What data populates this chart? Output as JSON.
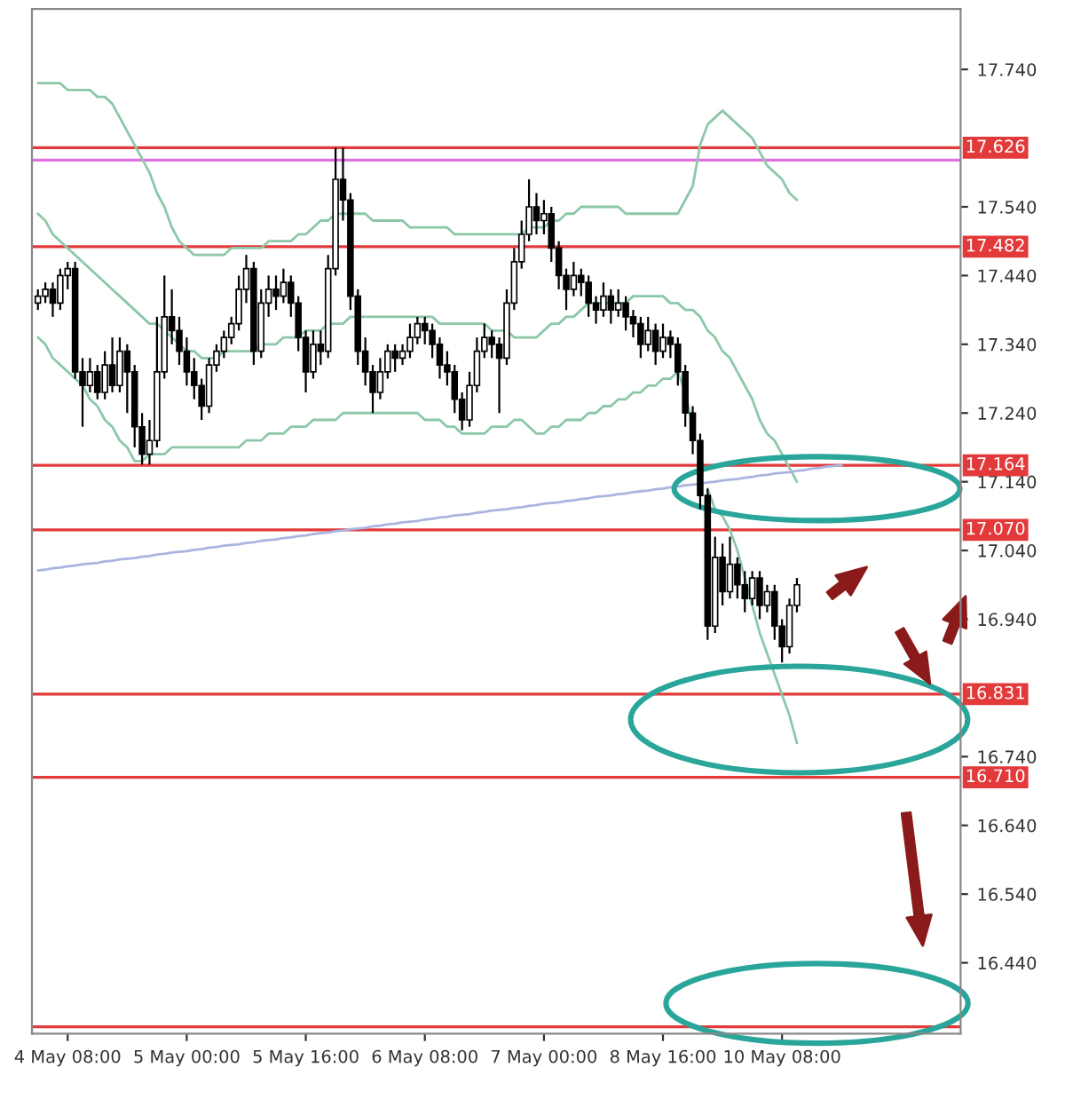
{
  "chart_data": {
    "type": "candlestick",
    "categories": [
      null,
      null,
      null,
      null,
      "4 May 08:00",
      null,
      null,
      null,
      null,
      null,
      null,
      null,
      null,
      null,
      null,
      null,
      null,
      null,
      null,
      null,
      "5 May 00:00",
      null,
      null,
      null,
      null,
      null,
      null,
      null,
      null,
      null,
      null,
      null,
      null,
      null,
      null,
      null,
      "5 May 16:00",
      null,
      null,
      null,
      null,
      null,
      null,
      null,
      null,
      null,
      null,
      null,
      null,
      null,
      null,
      null,
      "6 May 08:00",
      null,
      null,
      null,
      null,
      null,
      null,
      null,
      null,
      null,
      null,
      null,
      null,
      null,
      null,
      null,
      "7 May 00:00",
      null,
      null,
      null,
      null,
      null,
      null,
      null,
      null,
      null,
      null,
      null,
      null,
      null,
      null,
      null,
      "8 May 16:00",
      null,
      null,
      null,
      null,
      null,
      null,
      null,
      null,
      null,
      null,
      null,
      null,
      null,
      null,
      null,
      "10 May 08:00",
      null,
      null,
      null,
      null,
      null,
      null,
      null,
      null,
      null,
      null,
      null,
      null,
      null,
      null,
      null,
      null,
      null,
      null,
      null,
      null,
      null,
      null,
      null
    ],
    "ohlc": [
      [
        17.4,
        17.42,
        17.39,
        17.41
      ],
      [
        17.41,
        17.43,
        17.4,
        17.42
      ],
      [
        17.42,
        17.43,
        17.38,
        17.4
      ],
      [
        17.4,
        17.45,
        17.39,
        17.44
      ],
      [
        17.44,
        17.46,
        17.42,
        17.45
      ],
      [
        17.45,
        17.46,
        17.29,
        17.3
      ],
      [
        17.3,
        17.32,
        17.22,
        17.28
      ],
      [
        17.28,
        17.32,
        17.27,
        17.3
      ],
      [
        17.3,
        17.31,
        17.26,
        17.27
      ],
      [
        17.27,
        17.33,
        17.26,
        17.31
      ],
      [
        17.31,
        17.35,
        17.27,
        17.28
      ],
      [
        17.28,
        17.35,
        17.27,
        17.33
      ],
      [
        17.33,
        17.34,
        17.24,
        17.3
      ],
      [
        17.3,
        17.31,
        17.19,
        17.22
      ],
      [
        17.22,
        17.24,
        17.165,
        17.18
      ],
      [
        17.18,
        17.23,
        17.165,
        17.2
      ],
      [
        17.2,
        17.38,
        17.19,
        17.3
      ],
      [
        17.3,
        17.44,
        17.29,
        17.38
      ],
      [
        17.38,
        17.42,
        17.34,
        17.36
      ],
      [
        17.36,
        17.38,
        17.31,
        17.33
      ],
      [
        17.33,
        17.35,
        17.28,
        17.3
      ],
      [
        17.3,
        17.32,
        17.26,
        17.28
      ],
      [
        17.28,
        17.29,
        17.23,
        17.25
      ],
      [
        17.25,
        17.32,
        17.24,
        17.31
      ],
      [
        17.31,
        17.34,
        17.3,
        17.33
      ],
      [
        17.33,
        17.36,
        17.32,
        17.35
      ],
      [
        17.35,
        17.38,
        17.34,
        17.37
      ],
      [
        17.37,
        17.44,
        17.36,
        17.42
      ],
      [
        17.42,
        17.47,
        17.4,
        17.45
      ],
      [
        17.45,
        17.46,
        17.31,
        17.33
      ],
      [
        17.33,
        17.42,
        17.32,
        17.4
      ],
      [
        17.4,
        17.44,
        17.38,
        17.42
      ],
      [
        17.42,
        17.44,
        17.39,
        17.41
      ],
      [
        17.41,
        17.45,
        17.4,
        17.43
      ],
      [
        17.43,
        17.44,
        17.38,
        17.4
      ],
      [
        17.4,
        17.41,
        17.33,
        17.35
      ],
      [
        17.35,
        17.36,
        17.27,
        17.3
      ],
      [
        17.3,
        17.36,
        17.29,
        17.34
      ],
      [
        17.34,
        17.36,
        17.31,
        17.33
      ],
      [
        17.33,
        17.47,
        17.32,
        17.45
      ],
      [
        17.45,
        17.626,
        17.44,
        17.58
      ],
      [
        17.58,
        17.626,
        17.52,
        17.55
      ],
      [
        17.55,
        17.56,
        17.39,
        17.41
      ],
      [
        17.41,
        17.42,
        17.31,
        17.33
      ],
      [
        17.33,
        17.35,
        17.28,
        17.3
      ],
      [
        17.3,
        17.31,
        17.24,
        17.27
      ],
      [
        17.27,
        17.32,
        17.26,
        17.3
      ],
      [
        17.3,
        17.34,
        17.29,
        17.33
      ],
      [
        17.33,
        17.34,
        17.3,
        17.32
      ],
      [
        17.32,
        17.34,
        17.31,
        17.33
      ],
      [
        17.33,
        17.37,
        17.32,
        17.35
      ],
      [
        17.35,
        17.38,
        17.34,
        17.37
      ],
      [
        17.37,
        17.38,
        17.34,
        17.36
      ],
      [
        17.36,
        17.37,
        17.32,
        17.34
      ],
      [
        17.34,
        17.35,
        17.29,
        17.31
      ],
      [
        17.31,
        17.33,
        17.28,
        17.3
      ],
      [
        17.3,
        17.31,
        17.24,
        17.26
      ],
      [
        17.26,
        17.27,
        17.215,
        17.23
      ],
      [
        17.23,
        17.3,
        17.22,
        17.28
      ],
      [
        17.28,
        17.35,
        17.27,
        17.33
      ],
      [
        17.33,
        17.37,
        17.32,
        17.35
      ],
      [
        17.35,
        17.36,
        17.32,
        17.34
      ],
      [
        17.34,
        17.35,
        17.24,
        17.32
      ],
      [
        17.32,
        17.42,
        17.31,
        17.4
      ],
      [
        17.4,
        17.48,
        17.39,
        17.46
      ],
      [
        17.46,
        17.52,
        17.45,
        17.5
      ],
      [
        17.5,
        17.58,
        17.49,
        17.54
      ],
      [
        17.54,
        17.56,
        17.5,
        17.52
      ],
      [
        17.52,
        17.55,
        17.5,
        17.53
      ],
      [
        17.53,
        17.54,
        17.46,
        17.48
      ],
      [
        17.48,
        17.49,
        17.42,
        17.44
      ],
      [
        17.44,
        17.45,
        17.39,
        17.42
      ],
      [
        17.42,
        17.46,
        17.41,
        17.44
      ],
      [
        17.44,
        17.45,
        17.41,
        17.43
      ],
      [
        17.43,
        17.44,
        17.38,
        17.4
      ],
      [
        17.4,
        17.41,
        17.37,
        17.39
      ],
      [
        17.39,
        17.43,
        17.38,
        17.41
      ],
      [
        17.41,
        17.42,
        17.37,
        17.39
      ],
      [
        17.39,
        17.42,
        17.38,
        17.4
      ],
      [
        17.4,
        17.41,
        17.36,
        17.38
      ],
      [
        17.38,
        17.39,
        17.35,
        17.37
      ],
      [
        17.37,
        17.38,
        17.32,
        17.34
      ],
      [
        17.34,
        17.38,
        17.33,
        17.36
      ],
      [
        17.36,
        17.37,
        17.31,
        17.33
      ],
      [
        17.33,
        17.37,
        17.32,
        17.35
      ],
      [
        17.35,
        17.36,
        17.32,
        17.34
      ],
      [
        17.34,
        17.35,
        17.28,
        17.3
      ],
      [
        17.3,
        17.31,
        17.22,
        17.24
      ],
      [
        17.24,
        17.25,
        17.18,
        17.2
      ],
      [
        17.2,
        17.21,
        17.1,
        17.12
      ],
      [
        17.12,
        17.13,
        16.91,
        16.93
      ],
      [
        16.93,
        17.06,
        16.92,
        17.03
      ],
      [
        17.03,
        17.05,
        16.96,
        16.98
      ],
      [
        16.98,
        17.06,
        16.97,
        17.02
      ],
      [
        17.02,
        17.03,
        16.97,
        16.99
      ],
      [
        16.99,
        17.01,
        16.95,
        16.97
      ],
      [
        16.97,
        17.01,
        16.96,
        17.0
      ],
      [
        17.0,
        17.01,
        16.94,
        16.96
      ],
      [
        16.96,
        16.99,
        16.95,
        16.98
      ],
      [
        16.98,
        16.99,
        16.91,
        16.93
      ],
      [
        16.93,
        16.94,
        16.877,
        16.9
      ],
      [
        16.9,
        16.97,
        16.89,
        16.96
      ],
      [
        16.96,
        17.0,
        16.95,
        16.99
      ],
      null,
      null,
      null,
      null,
      null,
      null,
      null,
      null,
      null,
      null,
      null,
      null,
      null,
      null,
      null,
      null,
      null,
      null,
      null,
      null,
      null
    ],
    "series": [
      {
        "type": "line",
        "color": "#8cc8a8",
        "values": [
          17.72,
          17.72,
          17.72,
          17.72,
          17.71,
          17.71,
          17.71,
          17.71,
          17.7,
          17.7,
          17.69,
          17.67,
          17.65,
          17.63,
          17.61,
          17.59,
          17.56,
          17.54,
          17.51,
          17.49,
          17.48,
          17.47,
          17.47,
          17.47,
          17.47,
          17.47,
          17.48,
          17.48,
          17.48,
          17.48,
          17.48,
          17.49,
          17.49,
          17.49,
          17.49,
          17.5,
          17.5,
          17.51,
          17.52,
          17.52,
          17.53,
          17.53,
          17.53,
          17.53,
          17.53,
          17.52,
          17.52,
          17.52,
          17.52,
          17.52,
          17.51,
          17.51,
          17.51,
          17.51,
          17.51,
          17.51,
          17.5,
          17.5,
          17.5,
          17.5,
          17.5,
          17.5,
          17.5,
          17.5,
          17.5,
          17.5,
          17.51,
          17.51,
          17.51,
          17.52,
          17.52,
          17.53,
          17.53,
          17.54,
          17.54,
          17.54,
          17.54,
          17.54,
          17.54,
          17.53,
          17.53,
          17.53,
          17.53,
          17.53,
          17.53,
          17.53,
          17.53,
          17.55,
          17.57,
          17.63,
          17.66,
          17.67,
          17.68,
          17.67,
          17.66,
          17.65,
          17.64,
          17.62,
          17.6,
          17.59,
          17.58,
          17.56,
          17.55,
          null,
          null,
          null,
          null,
          null,
          null,
          null,
          null,
          null,
          null,
          null,
          null,
          null,
          null,
          null,
          null,
          null,
          null,
          null,
          null,
          null
        ]
      },
      {
        "type": "line",
        "color": "#8cc8a8",
        "values": [
          17.53,
          17.52,
          17.5,
          17.49,
          17.48,
          17.47,
          17.46,
          17.45,
          17.44,
          17.43,
          17.42,
          17.41,
          17.4,
          17.39,
          17.38,
          17.37,
          17.37,
          17.36,
          17.35,
          17.34,
          17.33,
          17.33,
          17.32,
          17.32,
          17.32,
          17.33,
          17.33,
          17.33,
          17.33,
          17.33,
          17.34,
          17.34,
          17.34,
          17.35,
          17.35,
          17.35,
          17.36,
          17.36,
          17.36,
          17.37,
          17.37,
          17.37,
          17.38,
          17.38,
          17.38,
          17.38,
          17.38,
          17.38,
          17.38,
          17.38,
          17.38,
          17.38,
          17.38,
          17.38,
          17.37,
          17.37,
          17.37,
          17.37,
          17.37,
          17.37,
          17.37,
          17.36,
          17.36,
          17.36,
          17.35,
          17.35,
          17.35,
          17.35,
          17.36,
          17.37,
          17.37,
          17.38,
          17.38,
          17.39,
          17.4,
          17.4,
          17.4,
          17.4,
          17.4,
          17.4,
          17.41,
          17.41,
          17.41,
          17.41,
          17.41,
          17.4,
          17.4,
          17.39,
          17.39,
          17.38,
          17.36,
          17.35,
          17.33,
          17.32,
          17.3,
          17.28,
          17.26,
          17.23,
          17.21,
          17.2,
          17.18,
          17.16,
          17.14,
          null,
          null,
          null,
          null,
          null,
          null,
          null,
          null,
          null,
          null,
          null,
          null,
          null,
          null,
          null,
          null,
          null,
          null,
          null,
          null,
          null
        ]
      },
      {
        "type": "line",
        "color": "#8cc8a8",
        "values": [
          17.35,
          17.34,
          17.32,
          17.31,
          17.3,
          17.29,
          17.28,
          17.26,
          17.25,
          17.23,
          17.22,
          17.2,
          17.19,
          17.17,
          17.17,
          17.18,
          17.18,
          17.18,
          17.19,
          17.19,
          17.19,
          17.19,
          17.19,
          17.19,
          17.19,
          17.19,
          17.19,
          17.19,
          17.2,
          17.2,
          17.2,
          17.21,
          17.21,
          17.21,
          17.22,
          17.22,
          17.22,
          17.23,
          17.23,
          17.23,
          17.23,
          17.24,
          17.24,
          17.24,
          17.24,
          17.24,
          17.24,
          17.24,
          17.24,
          17.24,
          17.24,
          17.24,
          17.23,
          17.23,
          17.23,
          17.22,
          17.22,
          17.21,
          17.21,
          17.21,
          17.21,
          17.22,
          17.22,
          17.22,
          17.23,
          17.23,
          17.22,
          17.21,
          17.21,
          17.22,
          17.22,
          17.23,
          17.23,
          17.23,
          17.24,
          17.24,
          17.25,
          17.25,
          17.26,
          17.26,
          17.27,
          17.27,
          17.28,
          17.28,
          17.29,
          17.29,
          17.3,
          17.27,
          17.22,
          null,
          17.13,
          17.1,
          17.09,
          17.07,
          17.04,
          17.0,
          16.96,
          16.92,
          16.89,
          16.86,
          16.83,
          16.8,
          16.76,
          null,
          null,
          null,
          null,
          null,
          null,
          null,
          null,
          null,
          null,
          null,
          null,
          null,
          null,
          null,
          null,
          null,
          null,
          null,
          null,
          null
        ]
      },
      {
        "type": "line",
        "color": "#aab4e0",
        "values": [
          17.011,
          17.012,
          17.014,
          17.015,
          17.017,
          17.018,
          17.02,
          17.021,
          17.022,
          17.024,
          17.025,
          17.027,
          17.028,
          17.029,
          17.031,
          17.032,
          17.034,
          17.035,
          17.037,
          17.038,
          17.039,
          17.041,
          17.042,
          17.044,
          17.045,
          17.047,
          17.048,
          17.049,
          17.051,
          17.052,
          17.054,
          17.055,
          17.056,
          17.058,
          17.059,
          17.061,
          17.062,
          17.064,
          17.065,
          17.066,
          17.068,
          17.069,
          17.071,
          17.072,
          17.073,
          17.075,
          17.076,
          17.078,
          17.079,
          17.081,
          17.082,
          17.083,
          17.085,
          17.086,
          17.088,
          17.089,
          17.091,
          17.092,
          17.093,
          17.095,
          17.096,
          17.098,
          17.099,
          17.1,
          17.102,
          17.103,
          17.105,
          17.106,
          17.108,
          17.109,
          17.11,
          17.112,
          17.113,
          17.115,
          17.116,
          17.118,
          17.119,
          17.12,
          17.122,
          17.123,
          17.125,
          17.126,
          17.127,
          17.129,
          17.13,
          17.132,
          17.133,
          17.135,
          17.136,
          17.137,
          17.139,
          17.14,
          17.142,
          17.143,
          17.144,
          17.146,
          17.147,
          17.149,
          17.15,
          17.152,
          17.153,
          17.154,
          17.156,
          17.157,
          17.159,
          17.16,
          17.162,
          17.163,
          17.164,
          null,
          null,
          null,
          null,
          null,
          null,
          null,
          null,
          null,
          null,
          null,
          null,
          null,
          null,
          null
        ]
      }
    ],
    "color": "#000000",
    "ylim": [
      16.337,
      17.828
    ],
    "yticks": [
      {
        "value": 16.44,
        "label": "16.440"
      },
      {
        "value": 16.54,
        "label": "16.540"
      },
      {
        "value": 16.64,
        "label": "16.640"
      },
      {
        "value": 16.74,
        "label": "16.740"
      },
      {
        "value": 16.94,
        "label": "16.940"
      },
      {
        "value": 17.04,
        "label": "17.040"
      },
      {
        "value": 17.14,
        "label": "17.140"
      },
      {
        "value": 17.24,
        "label": "17.240"
      },
      {
        "value": 17.34,
        "label": "17.340"
      },
      {
        "value": 17.44,
        "label": "17.440"
      },
      {
        "value": 17.54,
        "label": "17.540"
      },
      {
        "value": 17.74,
        "label": "17.740"
      }
    ],
    "ref_lines": [
      {
        "axis": "y",
        "value": 17.626,
        "label": "17.626",
        "color": "#e23a3a"
      },
      {
        "axis": "y",
        "value": 17.608,
        "color": "#e070e0"
      },
      {
        "axis": "y",
        "value": 17.482,
        "label": "17.482",
        "color": "#e23a3a"
      },
      {
        "axis": "y",
        "value": 17.164,
        "label": "17.164",
        "color": "#e23a3a"
      },
      {
        "axis": "y",
        "value": 17.07,
        "label": "17.070",
        "color": "#e23a3a"
      },
      {
        "axis": "y",
        "value": 16.831,
        "label": "16.831",
        "color": "#e23a3a"
      },
      {
        "axis": "y",
        "value": 16.71,
        "label": "16.710",
        "color": "#e23a3a"
      },
      {
        "axis": "y",
        "value": 16.347,
        "color": "#e23a3a"
      }
    ],
    "grid": false,
    "legend": false
  }
}
